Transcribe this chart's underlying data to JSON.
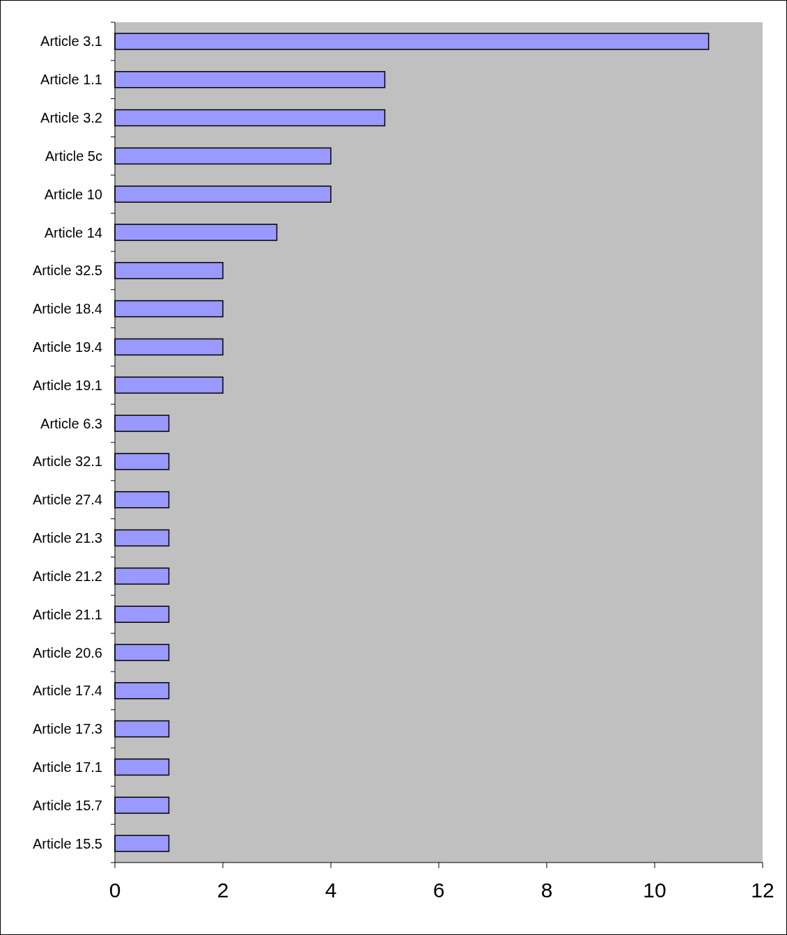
{
  "chart_data": {
    "type": "bar",
    "orientation": "horizontal",
    "categories": [
      "Article 3.1",
      "Article 1.1",
      "Article 3.2",
      "Article 5c",
      "Article 10",
      "Article 14",
      "Article 32.5",
      "Article 18.4",
      "Article 19.4",
      "Article 19.1",
      "Article 6.3",
      "Article 32.1",
      "Article 27.4",
      "Article 21.3",
      "Article 21.2",
      "Article 21.1",
      "Article 20.6",
      "Article 17.4",
      "Article 17.3",
      "Article 17.1",
      "Article 15.7",
      "Article 15.5"
    ],
    "values": [
      11,
      5,
      5,
      4,
      4,
      3,
      2,
      2,
      2,
      2,
      1,
      1,
      1,
      1,
      1,
      1,
      1,
      1,
      1,
      1,
      1,
      1
    ],
    "color": "#9999ff",
    "xlim": [
      0,
      12
    ],
    "xticks": [
      0,
      2,
      4,
      6,
      8,
      10,
      12
    ],
    "grid": false
  }
}
